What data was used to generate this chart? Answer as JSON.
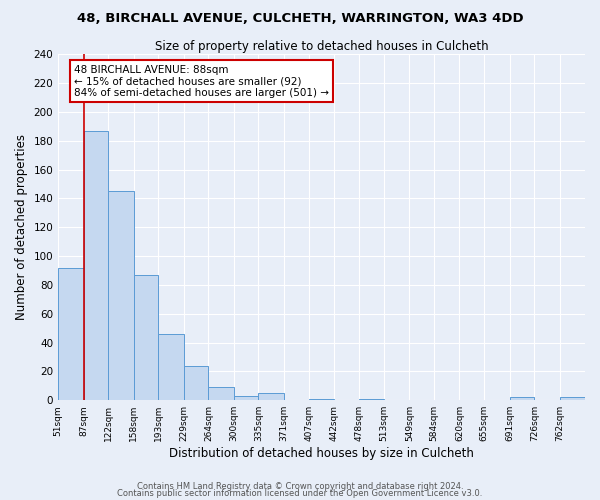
{
  "title": "48, BIRCHALL AVENUE, CULCHETH, WARRINGTON, WA3 4DD",
  "subtitle": "Size of property relative to detached houses in Culcheth",
  "xlabel": "Distribution of detached houses by size in Culcheth",
  "ylabel": "Number of detached properties",
  "bin_labels": [
    "51sqm",
    "87sqm",
    "122sqm",
    "158sqm",
    "193sqm",
    "229sqm",
    "264sqm",
    "300sqm",
    "335sqm",
    "371sqm",
    "407sqm",
    "442sqm",
    "478sqm",
    "513sqm",
    "549sqm",
    "584sqm",
    "620sqm",
    "655sqm",
    "691sqm",
    "726sqm",
    "762sqm"
  ],
  "bin_edges": [
    51,
    87,
    122,
    158,
    193,
    229,
    264,
    300,
    335,
    371,
    407,
    442,
    478,
    513,
    549,
    584,
    620,
    655,
    691,
    726,
    762,
    798
  ],
  "bar_heights": [
    92,
    187,
    145,
    87,
    46,
    24,
    9,
    3,
    5,
    0,
    1,
    0,
    1,
    0,
    0,
    0,
    0,
    0,
    2,
    0,
    2
  ],
  "bar_color": "#c5d8f0",
  "bar_edge_color": "#5b9bd5",
  "redline_x": 88,
  "annotation_title": "48 BIRCHALL AVENUE: 88sqm",
  "annotation_line1": "← 15% of detached houses are smaller (92)",
  "annotation_line2": "84% of semi-detached houses are larger (501) →",
  "annotation_box_color": "#ffffff",
  "annotation_box_edge": "#cc0000",
  "redline_color": "#cc0000",
  "ylim": [
    0,
    240
  ],
  "yticks": [
    0,
    20,
    40,
    60,
    80,
    100,
    120,
    140,
    160,
    180,
    200,
    220,
    240
  ],
  "footer1": "Contains HM Land Registry data © Crown copyright and database right 2024.",
  "footer2": "Contains public sector information licensed under the Open Government Licence v3.0.",
  "bg_color": "#e8eef8",
  "grid_color": "#ffffff"
}
